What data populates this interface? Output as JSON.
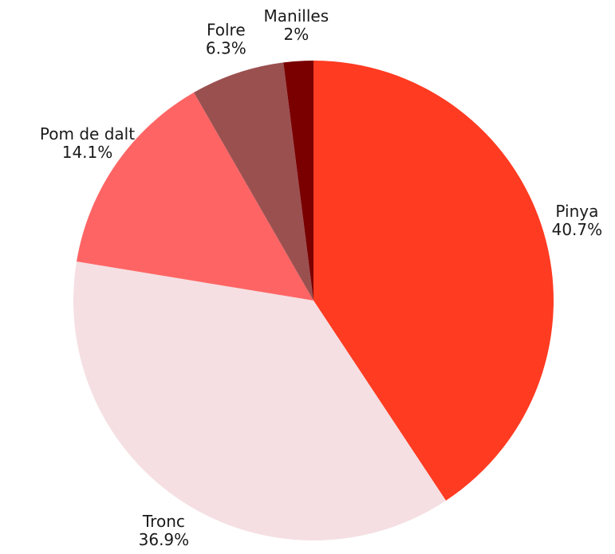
{
  "chart_data": {
    "type": "pie",
    "categories": [
      "Pinya",
      "Tronc",
      "Pom de dalt",
      "Folre",
      "Manilles"
    ],
    "values": [
      40.7,
      36.9,
      14.1,
      6.3,
      2
    ],
    "value_labels": [
      "40.7%",
      "36.9%",
      "14.1%",
      "6.3%",
      "2%"
    ],
    "colors": [
      "#ff3b22",
      "#f5dfe2",
      "#ff6464",
      "#9b5050",
      "#7a0000"
    ]
  }
}
